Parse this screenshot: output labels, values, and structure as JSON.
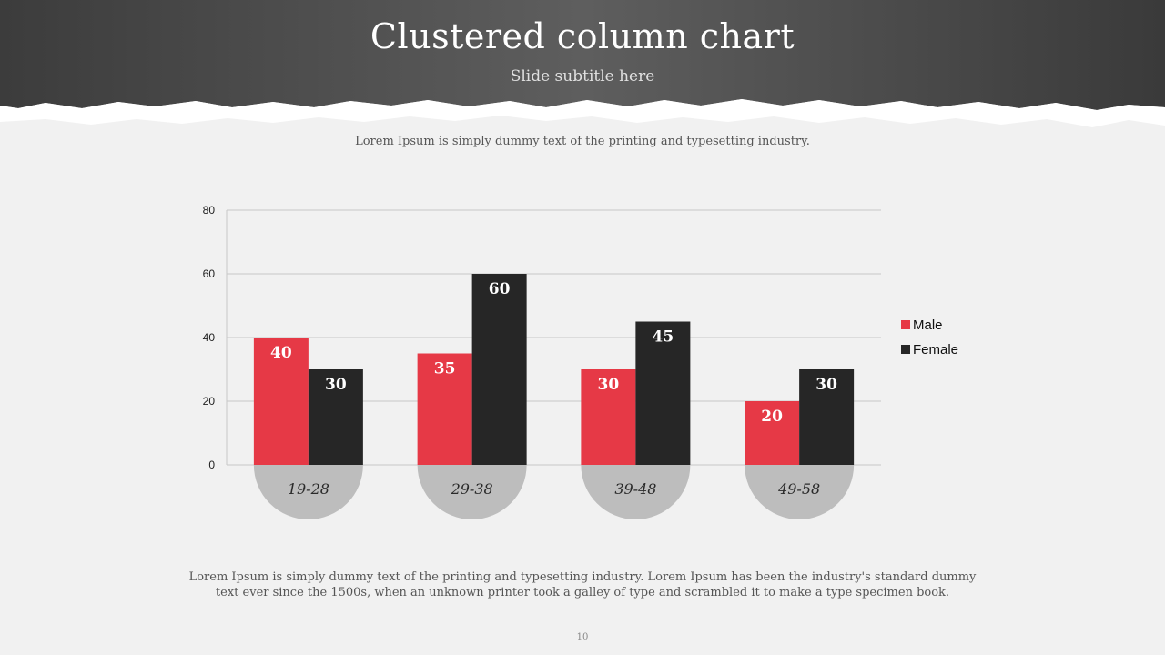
{
  "slide": {
    "title": "Clustered column chart",
    "subtitle": "Slide subtitle here",
    "intro": "Lorem Ipsum is simply dummy text of the printing and typesetting industry.",
    "body": "Lorem Ipsum is simply dummy text of the printing and typesetting industry. Lorem Ipsum has been the industry's standard dummy text ever since the 1500s, when an unknown printer took a galley of type and scrambled it to make a type specimen book.",
    "page_number": "10"
  },
  "chart_data": {
    "type": "bar",
    "categories": [
      "19-28",
      "29-38",
      "39-48",
      "49-58"
    ],
    "series": [
      {
        "name": "Male",
        "values": [
          40,
          35,
          30,
          20
        ],
        "color": "#e63946"
      },
      {
        "name": "Female",
        "values": [
          30,
          60,
          45,
          30
        ],
        "color": "#262626"
      }
    ],
    "ylim": [
      0,
      80
    ],
    "yticks": [
      0,
      20,
      40,
      60,
      80
    ],
    "grid": true,
    "legend_position": "right",
    "category_badge_color": "#bdbdbd"
  }
}
